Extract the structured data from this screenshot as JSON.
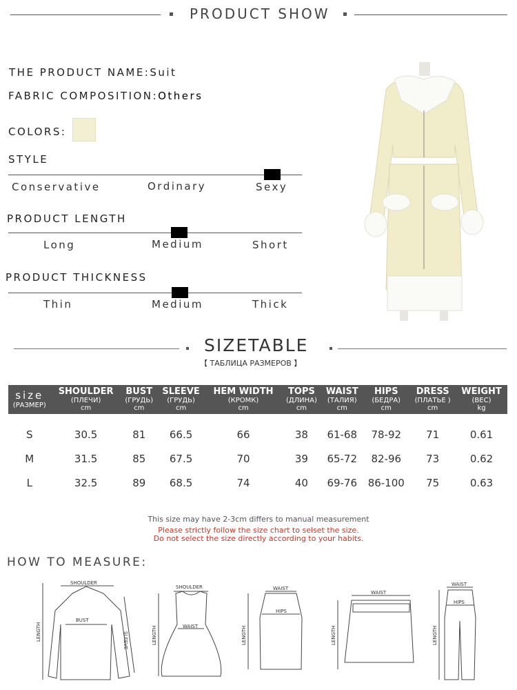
{
  "header": {
    "title": "PRODUCT SHOW"
  },
  "product": {
    "name_label": "THE PRODUCT NAME:",
    "name": "Suit",
    "fabric_label": "FABRIC COMPOSITION:",
    "fabric": "Others",
    "colors_label": "COLORS:",
    "color_swatch": "#f3efd2"
  },
  "style": {
    "title": "STYLE",
    "options": [
      "Conservative",
      "Ordinary",
      "Sexy"
    ],
    "selected": "Sexy"
  },
  "length": {
    "title": "PRODUCT LENGTH",
    "options": [
      "Long",
      "Medium",
      "Short"
    ],
    "selected": "Medium"
  },
  "thickness": {
    "title": "PRODUCT THICKNESS",
    "options": [
      "Thin",
      "Medium",
      "Thick"
    ],
    "selected": "Medium"
  },
  "sizetable": {
    "title": "SIZETABLE",
    "subtitle": "【 ТАБЛИЦА РАЗМЕРОВ 】",
    "columns": [
      {
        "en": "size",
        "ru": "(РАЗМЕР)",
        "unit": ""
      },
      {
        "en": "SHOULDER",
        "ru": "(ПЛЕЧИ)",
        "unit": "cm"
      },
      {
        "en": "BUST",
        "ru": "(ГРУДЬ)",
        "unit": "cm"
      },
      {
        "en": "SLEEVE",
        "ru": "(ГРУДЬ)",
        "unit": "cm"
      },
      {
        "en": "HEM WIDTH",
        "ru": "(КРОМК)",
        "unit": "cm"
      },
      {
        "en": "TOPS",
        "ru": "(ДЛИНА)",
        "unit": "cm"
      },
      {
        "en": "WAIST",
        "ru": "(ТАЛИЯ)",
        "unit": "cm"
      },
      {
        "en": "HIPS",
        "ru": "(БЕДРА)",
        "unit": "cm"
      },
      {
        "en": "DRESS",
        "ru": "(ПЛАТЬЕ )",
        "unit": "cm"
      },
      {
        "en": "WEIGHT",
        "ru": "(ВЕС)",
        "unit": "kg"
      }
    ],
    "rows": [
      [
        "S",
        "30.5",
        "81",
        "66.5",
        "66",
        "38",
        "61-68",
        "78-92",
        "71",
        "0.61"
      ],
      [
        "M",
        "31.5",
        "85",
        "67.5",
        "70",
        "39",
        "65-72",
        "82-96",
        "73",
        "0.62"
      ],
      [
        "L",
        "32.5",
        "89",
        "68.5",
        "74",
        "40",
        "69-76",
        "86-100",
        "75",
        "0.63"
      ]
    ]
  },
  "notes": {
    "line1": "This size may have 2-3cm differs to manual measurement",
    "line2": "Please strictly follow the size chart to selset the size.",
    "line3": "Do not select the size directly according to your habits."
  },
  "measure": {
    "title": "HOW TO MEASURE:",
    "labels": {
      "shoulder": "SHOULDER",
      "bust": "BUST",
      "length": "LENGTH",
      "sleeve": "SLEEVE",
      "waist": "WAIST",
      "hips": "HIPS"
    }
  }
}
